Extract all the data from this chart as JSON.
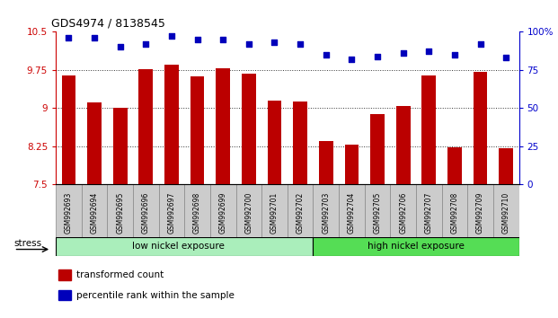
{
  "title": "GDS4974 / 8138545",
  "samples": [
    "GSM992693",
    "GSM992694",
    "GSM992695",
    "GSM992696",
    "GSM992697",
    "GSM992698",
    "GSM992699",
    "GSM992700",
    "GSM992701",
    "GSM992702",
    "GSM992703",
    "GSM992704",
    "GSM992705",
    "GSM992706",
    "GSM992707",
    "GSM992708",
    "GSM992709",
    "GSM992710"
  ],
  "bar_values": [
    9.65,
    9.12,
    9.0,
    9.76,
    9.85,
    9.63,
    9.78,
    9.68,
    9.14,
    9.13,
    8.35,
    8.28,
    8.88,
    9.05,
    9.65,
    8.23,
    9.72,
    8.22
  ],
  "dot_values": [
    96,
    96,
    90,
    92,
    97,
    95,
    95,
    92,
    93,
    92,
    85,
    82,
    84,
    86,
    87,
    85,
    92,
    83
  ],
  "ylim": [
    7.5,
    10.5
  ],
  "yticks": [
    7.5,
    8.25,
    9.0,
    9.75,
    10.5
  ],
  "ytick_labels": [
    "7.5",
    "8.25",
    "9",
    "9.75",
    "10.5"
  ],
  "y2lim": [
    0,
    100
  ],
  "y2ticks": [
    0,
    25,
    50,
    75,
    100
  ],
  "y2tick_labels": [
    "0",
    "25",
    "50",
    "75",
    "100%"
  ],
  "bar_color": "#bb0000",
  "dot_color": "#0000bb",
  "bar_bottom": 7.5,
  "group1_label": "low nickel exposure",
  "group2_label": "high nickel exposure",
  "group1_count": 10,
  "group2_count": 8,
  "group1_color": "#aaeebb",
  "group2_color": "#55dd55",
  "stress_label": "stress",
  "legend1_label": "transformed count",
  "legend2_label": "percentile rank within the sample",
  "bar_label_color": "#cc0000",
  "y2label_color": "#0000cc",
  "grid_color": "#333333",
  "xtick_bg": "#cccccc",
  "xtick_border": "#888888"
}
